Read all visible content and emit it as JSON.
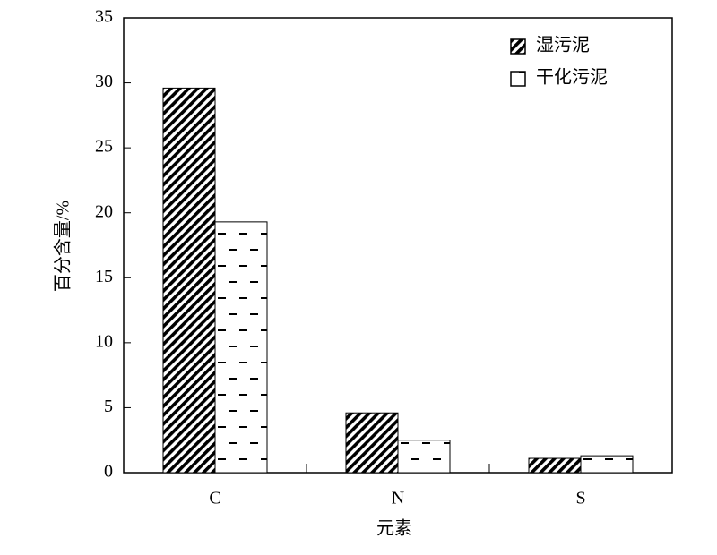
{
  "chart_data": {
    "type": "bar",
    "x_label": "元素",
    "y_label": "百分含量/%",
    "categories": [
      "C",
      "N",
      "S"
    ],
    "series": [
      {
        "name": "湿污泥",
        "color": "#000000",
        "pattern": "hatch",
        "values": [
          29.6,
          4.6,
          1.1
        ]
      },
      {
        "name": "干化污泥",
        "color": "#000000",
        "pattern": "dash",
        "values": [
          19.3,
          2.5,
          1.3
        ]
      }
    ],
    "ylim": [
      0,
      35
    ],
    "yticks": [
      0,
      5,
      10,
      15,
      20,
      25,
      30,
      35
    ],
    "legend": "upper-right"
  }
}
